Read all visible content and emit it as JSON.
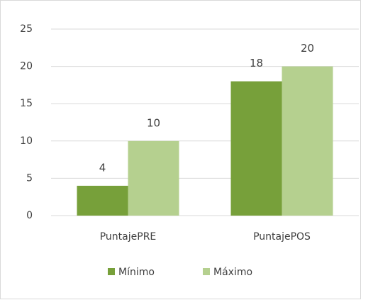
{
  "chart_data": {
    "type": "bar",
    "categories": [
      "PuntajePRE",
      "PuntajePOS"
    ],
    "series": [
      {
        "name": "Mínimo",
        "color": "#77a03a",
        "values": [
          4,
          18
        ]
      },
      {
        "name": "Máximo",
        "color": "#b5d08f",
        "values": [
          10,
          20
        ]
      }
    ],
    "ylim": [
      0,
      25
    ],
    "yticks": [
      0,
      5,
      10,
      15,
      20,
      25
    ],
    "grid": true,
    "legend": "bottom",
    "data_labels": true
  }
}
